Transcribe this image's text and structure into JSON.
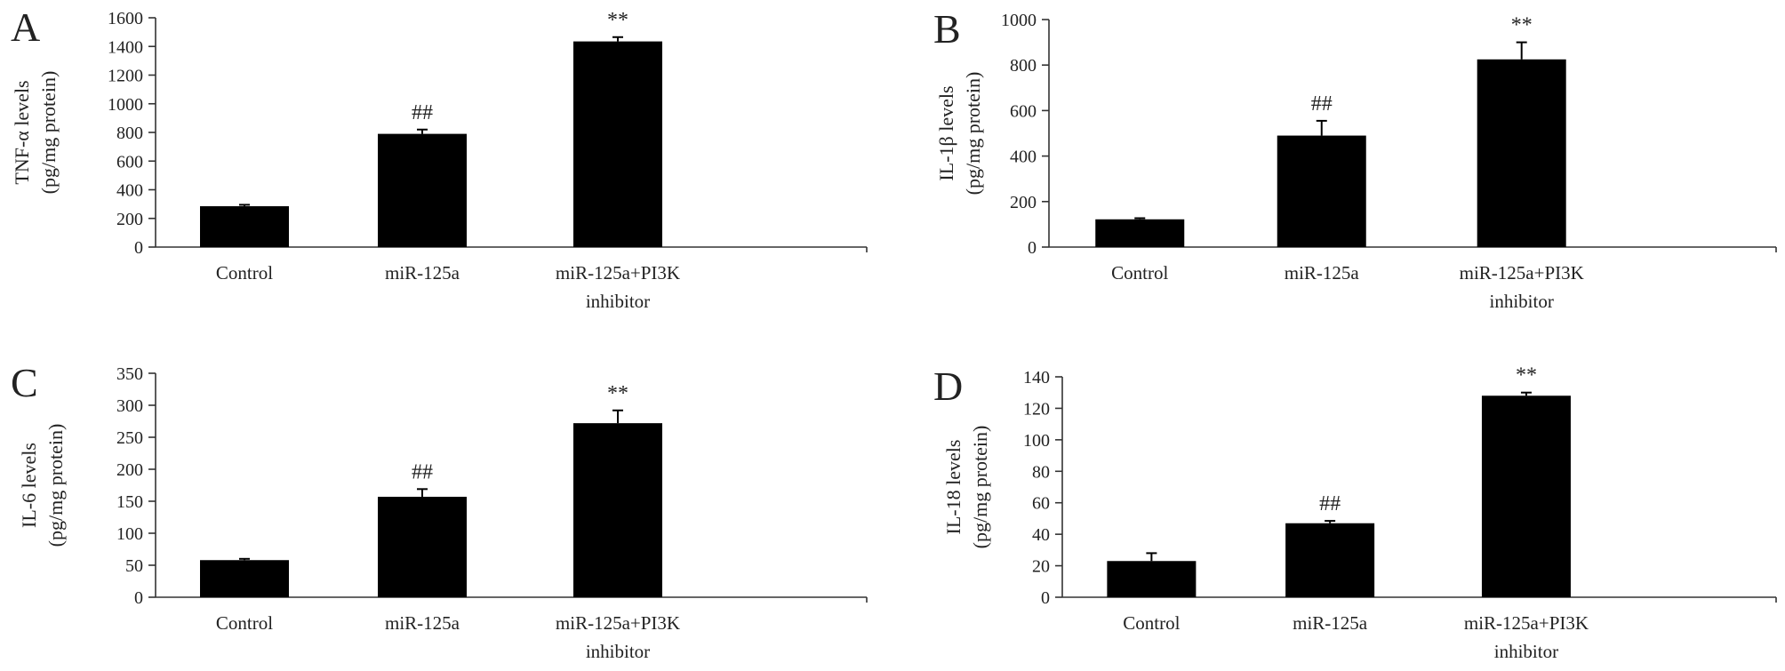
{
  "chart_data": [
    {
      "type": "bar",
      "panel": "A",
      "ylabel": [
        "TNF-α levels",
        "(pg/mg protein)"
      ],
      "ylim": [
        0,
        1600
      ],
      "yticks": [
        0,
        200,
        400,
        600,
        800,
        1000,
        1200,
        1400,
        1600
      ],
      "categories": [
        [
          "Control"
        ],
        [
          "miR-125a"
        ],
        [
          "miR-125a+PI3K",
          "inhibitor"
        ]
      ],
      "values": [
        285,
        790,
        1435
      ],
      "errors": [
        10,
        30,
        30
      ],
      "annotations": [
        "",
        "##",
        "**"
      ]
    },
    {
      "type": "bar",
      "panel": "B",
      "ylabel": [
        "IL-1β levels",
        "(pg/mg protein)"
      ],
      "ylim": [
        0,
        1000
      ],
      "yticks": [
        0,
        200,
        400,
        600,
        800,
        1000
      ],
      "categories": [
        [
          "Control"
        ],
        [
          "miR-125a"
        ],
        [
          "miR-125a+PI3K",
          "inhibitor"
        ]
      ],
      "values": [
        122,
        490,
        825
      ],
      "errors": [
        5,
        65,
        75
      ],
      "annotations": [
        "",
        "##",
        "**"
      ]
    },
    {
      "type": "bar",
      "panel": "C",
      "ylabel": [
        "IL-6 levels",
        "(pg/mg protein)"
      ],
      "ylim": [
        0,
        350
      ],
      "yticks": [
        0,
        50,
        100,
        150,
        200,
        250,
        300,
        350
      ],
      "categories": [
        [
          "Control"
        ],
        [
          "miR-125a"
        ],
        [
          "miR-125a+PI3K",
          "inhibitor"
        ]
      ],
      "values": [
        58,
        157,
        272
      ],
      "errors": [
        2,
        12,
        20
      ],
      "annotations": [
        "",
        "##",
        "**"
      ]
    },
    {
      "type": "bar",
      "panel": "D",
      "ylabel": [
        "IL-18 levels",
        "(pg/mg protein)"
      ],
      "ylim": [
        0,
        140
      ],
      "yticks": [
        0,
        20,
        40,
        60,
        80,
        100,
        120,
        140
      ],
      "categories": [
        [
          "Control"
        ],
        [
          "miR-125a"
        ],
        [
          "miR-125a+PI3K",
          "inhibitor"
        ]
      ],
      "values": [
        23,
        47,
        128
      ],
      "errors": [
        5,
        1.5,
        2
      ],
      "annotations": [
        "",
        "##",
        "**"
      ]
    }
  ]
}
